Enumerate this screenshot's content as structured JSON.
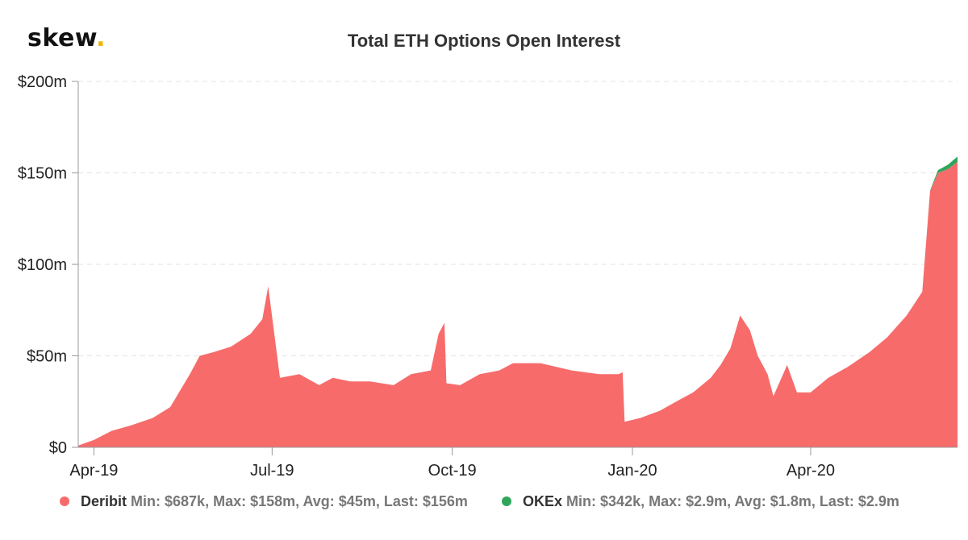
{
  "brand": {
    "name": "skew",
    "dot": "."
  },
  "chart_data": {
    "type": "area",
    "title": "Total ETH Options Open Interest",
    "stacked": true,
    "yticks": [
      "$0",
      "$50m",
      "$100m",
      "$150m",
      "$200m"
    ],
    "ylim": [
      0,
      200
    ],
    "yunit": "$m",
    "xticks": [
      "Apr-19",
      "Jul-19",
      "Oct-19",
      "Jan-20",
      "Apr-20"
    ],
    "xrange": [
      "2019-03-24",
      "2020-06-15"
    ],
    "grid": true,
    "legend_position": "bottom",
    "x": [
      "2019-03-24",
      "2019-04-01",
      "2019-04-10",
      "2019-04-20",
      "2019-05-01",
      "2019-05-10",
      "2019-05-20",
      "2019-05-25",
      "2019-06-01",
      "2019-06-10",
      "2019-06-20",
      "2019-06-26",
      "2019-06-29",
      "2019-07-05",
      "2019-07-15",
      "2019-07-25",
      "2019-08-01",
      "2019-08-10",
      "2019-08-20",
      "2019-09-01",
      "2019-09-10",
      "2019-09-20",
      "2019-09-24",
      "2019-09-27",
      "2019-09-28",
      "2019-10-05",
      "2019-10-15",
      "2019-10-25",
      "2019-11-01",
      "2019-11-15",
      "2019-12-01",
      "2019-12-15",
      "2019-12-25",
      "2019-12-27",
      "2019-12-28",
      "2020-01-05",
      "2020-01-15",
      "2020-01-25",
      "2020-02-01",
      "2020-02-10",
      "2020-02-15",
      "2020-02-20",
      "2020-02-25",
      "2020-03-01",
      "2020-03-05",
      "2020-03-10",
      "2020-03-13",
      "2020-03-20",
      "2020-03-25",
      "2020-04-01",
      "2020-04-10",
      "2020-04-20",
      "2020-05-01",
      "2020-05-10",
      "2020-05-20",
      "2020-05-28",
      "2020-06-01",
      "2020-06-05",
      "2020-06-10",
      "2020-06-15"
    ],
    "series": [
      {
        "name": "Deribit",
        "color": "#f76b6b",
        "summary": "Min: $687k, Max: $158m, Avg: $45m, Last: $156m",
        "values": [
          1,
          4,
          9,
          12,
          16,
          22,
          40,
          50,
          52,
          55,
          62,
          70,
          88,
          38,
          40,
          34,
          38,
          36,
          36,
          34,
          40,
          42,
          62,
          68,
          35,
          34,
          40,
          42,
          46,
          46,
          42,
          40,
          40,
          41,
          14,
          16,
          20,
          26,
          30,
          38,
          45,
          54,
          72,
          64,
          50,
          40,
          28,
          45,
          30,
          30,
          38,
          44,
          52,
          60,
          72,
          85,
          140,
          150,
          152,
          156
        ]
      },
      {
        "name": "OKEx",
        "color": "#2fa65c",
        "summary": "Min: $342k, Max: $2.9m, Avg: $1.8m, Last: $2.9m",
        "values": [
          0,
          0,
          0,
          0,
          0,
          0,
          0,
          0,
          0,
          0,
          0,
          0,
          0,
          0,
          0,
          0,
          0,
          0,
          0,
          0,
          0,
          0,
          0,
          0,
          0,
          0,
          0,
          0,
          0,
          0,
          0,
          0,
          0,
          0,
          0,
          0,
          0,
          0,
          0,
          0,
          0,
          0,
          0,
          0,
          0,
          0,
          0,
          0,
          0,
          0,
          0,
          0,
          0,
          0,
          0,
          0,
          0.34,
          1.5,
          2.4,
          2.9
        ]
      }
    ]
  },
  "legend": {
    "deribit": {
      "name": "Deribit",
      "stats": "Min: $687k, Max: $158m, Avg: $45m, Last: $156m",
      "color": "#f76b6b"
    },
    "okex": {
      "name": "OKEx",
      "stats": "Min: $342k, Max: $2.9m, Avg: $1.8m, Last: $2.9m",
      "color": "#2fa65c"
    }
  }
}
